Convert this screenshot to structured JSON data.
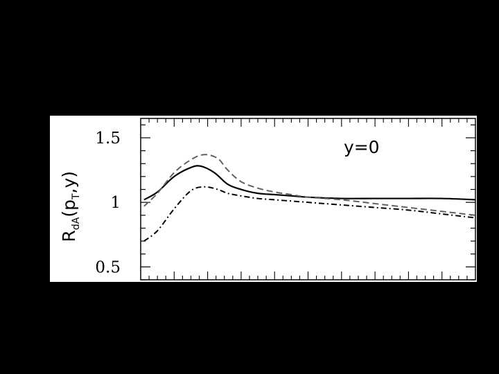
{
  "chart_data": {
    "type": "line",
    "title": "",
    "xlabel": "",
    "ylabel": {
      "base": "R",
      "subscript": "dA",
      "arg_open": "(p",
      "arg_sub": "T",
      "arg_close": ",y)"
    },
    "annotation": "y=0",
    "ylim": [
      0.4,
      1.65
    ],
    "xlim": [
      0,
      10
    ],
    "yticks": [
      {
        "value": 0.5,
        "label": "0.5"
      },
      {
        "value": 1.0,
        "label": "1"
      },
      {
        "value": 1.5,
        "label": "1.5"
      }
    ],
    "y_minor_step": 0.1,
    "x_minor_step": 0.25,
    "grid": false,
    "legend": "none",
    "series": [
      {
        "style": "solid",
        "color": "#000000",
        "x": [
          0.1,
          0.5,
          1.0,
          1.5,
          1.8,
          2.2,
          2.6,
          3.0,
          3.5,
          4.0,
          4.5,
          5.0,
          6.0,
          7.0,
          8.0,
          9.0,
          10.0
        ],
        "y": [
          1.02,
          1.08,
          1.2,
          1.27,
          1.28,
          1.23,
          1.14,
          1.1,
          1.07,
          1.06,
          1.05,
          1.04,
          1.03,
          1.03,
          1.03,
          1.03,
          1.02
        ]
      },
      {
        "style": "dashed",
        "color": "#606060",
        "x": [
          0.1,
          0.5,
          1.0,
          1.5,
          1.9,
          2.3,
          2.6,
          3.0,
          3.5,
          4.0,
          4.5,
          5.0,
          6.0,
          7.0,
          8.0,
          9.0,
          10.0
        ],
        "y": [
          0.97,
          1.07,
          1.23,
          1.33,
          1.37,
          1.34,
          1.25,
          1.16,
          1.11,
          1.08,
          1.06,
          1.04,
          1.02,
          0.99,
          0.96,
          0.93,
          0.9
        ]
      },
      {
        "style": "dashdot",
        "color": "#000000",
        "x": [
          0.1,
          0.5,
          1.0,
          1.5,
          1.9,
          2.3,
          2.6,
          3.0,
          3.5,
          4.0,
          4.5,
          5.0,
          6.0,
          7.0,
          8.0,
          9.0,
          10.0
        ],
        "y": [
          0.7,
          0.78,
          0.95,
          1.09,
          1.12,
          1.1,
          1.07,
          1.05,
          1.03,
          1.02,
          1.01,
          1.0,
          0.98,
          0.96,
          0.94,
          0.91,
          0.88
        ]
      }
    ]
  }
}
